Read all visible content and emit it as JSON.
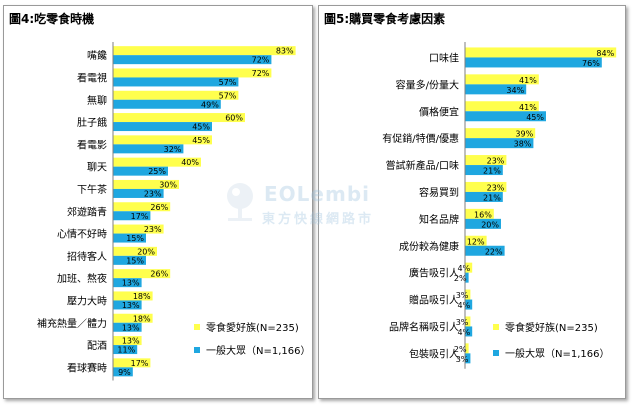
{
  "watermark": {
    "text_top": "EOLembi",
    "text_bottom": "東方快線網路市"
  },
  "chart_data": [
    {
      "type": "bar",
      "orientation": "horizontal",
      "title": "圖4:吃零食時機",
      "categories": [
        "嘴饞",
        "看電視",
        "無聊",
        "肚子餓",
        "看電影",
        "聊天",
        "下午茶",
        "郊遊踏青",
        "心情不好時",
        "招待客人",
        "加班、熬夜",
        "壓力大時",
        "補充熱量／體力",
        "配酒",
        "看球賽時"
      ],
      "series": [
        {
          "name": "零食愛好族(N=235)",
          "color": "#ffff4d",
          "values": [
            83,
            72,
            57,
            60,
            45,
            40,
            30,
            26,
            23,
            20,
            26,
            18,
            18,
            13,
            17
          ]
        },
        {
          "name": "一般大眾（N=1,166）",
          "color": "#1fa7e0",
          "values": [
            72,
            57,
            49,
            45,
            32,
            25,
            23,
            17,
            15,
            15,
            13,
            13,
            13,
            11,
            9
          ]
        }
      ],
      "value_suffix": "%",
      "xlim": [
        0,
        100
      ],
      "legend_position": "bottom-right",
      "grid": false
    },
    {
      "type": "bar",
      "orientation": "horizontal",
      "title": "圖5:購買零食考慮因素",
      "categories": [
        "口味佳",
        "容量多/份量大",
        "價格便宜",
        "有促銷/特價/優惠",
        "嘗試新產品/口味",
        "容易買到",
        "知名品牌",
        "成份較為健康",
        "廣告吸引人",
        "贈品吸引人",
        "品牌名稱吸引人",
        "包裝吸引人"
      ],
      "series": [
        {
          "name": "零食愛好族(N=235)",
          "color": "#ffff4d",
          "values": [
            84,
            41,
            41,
            39,
            23,
            23,
            16,
            12,
            4,
            3,
            3,
            2
          ]
        },
        {
          "name": "一般大眾（N=1,166）",
          "color": "#1fa7e0",
          "values": [
            76,
            34,
            45,
            38,
            21,
            21,
            20,
            22,
            2,
            4,
            4,
            3
          ]
        }
      ],
      "value_suffix": "%",
      "xlim": [
        0,
        100
      ],
      "legend_position": "bottom-right",
      "grid": false
    }
  ]
}
